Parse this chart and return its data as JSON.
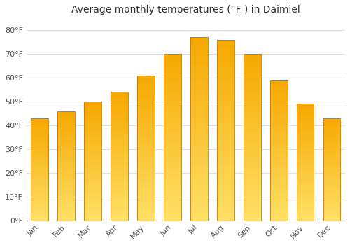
{
  "title": "Average monthly temperatures (°F ) in Daimiel",
  "months": [
    "Jan",
    "Feb",
    "Mar",
    "Apr",
    "May",
    "Jun",
    "Jul",
    "Aug",
    "Sep",
    "Oct",
    "Nov",
    "Dec"
  ],
  "values": [
    43,
    46,
    50,
    54,
    61,
    70,
    77,
    76,
    70,
    59,
    49,
    43
  ],
  "bar_color_top": "#F5A800",
  "bar_color_bottom": "#FFE066",
  "bar_edge_color": "#C87800",
  "background_color": "#FFFFFF",
  "plot_bg_color": "#FFFFFF",
  "grid_color": "#E0E0E0",
  "ytick_labels": [
    "0°F",
    "10°F",
    "20°F",
    "30°F",
    "40°F",
    "50°F",
    "60°F",
    "70°F",
    "80°F"
  ],
  "ytick_values": [
    0,
    10,
    20,
    30,
    40,
    50,
    60,
    70,
    80
  ],
  "ylim": [
    0,
    85
  ],
  "title_fontsize": 10,
  "tick_fontsize": 8,
  "bar_width": 0.65
}
